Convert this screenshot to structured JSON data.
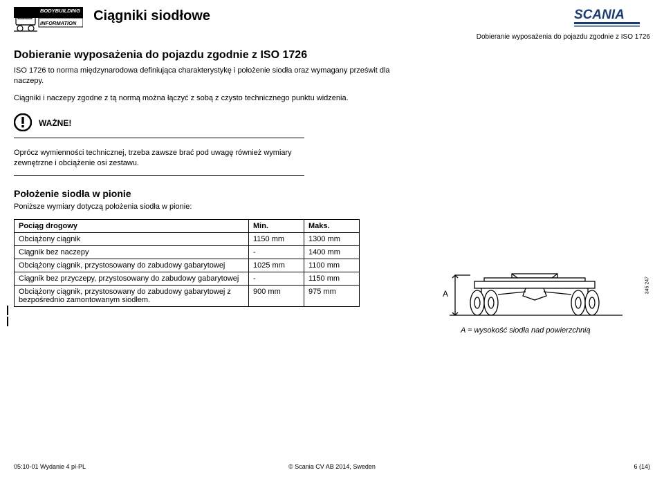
{
  "colors": {
    "brand_blue": "#1a3e72",
    "text": "#000000",
    "bg": "#ffffff",
    "line": "#000000"
  },
  "header": {
    "badge_line1": "BODYBUILDING",
    "badge_line2": "INFORMATION",
    "doc_title": "Ciągniki siodłowe",
    "brand": "SCANIA",
    "right_caption": "Dobieranie wyposażenia do pojazdu zgodnie z ISO 1726"
  },
  "section": {
    "h2": "Dobieranie wyposażenia do pojazdu zgodnie z ISO 1726",
    "p1": "ISO 1726 to norma międzynarodowa definiująca charakterystykę i położenie siodła oraz wymagany prześwit dla naczepy.",
    "p2": "Ciągniki i naczepy zgodne z tą normą można łączyć z sobą z czysto technicznego punktu widzenia.",
    "warn_label": "WAŻNE!",
    "warn_text": "Oprócz wymienności technicznej, trzeba zawsze brać pod uwagę również wymiary zewnętrzne i obciążenie osi zestawu."
  },
  "subsection": {
    "h3": "Położenie siodła w pionie",
    "intro": "Poniższe wymiary dotyczą położenia siodła w pionie:"
  },
  "table": {
    "head": [
      "Pociąg drogowy",
      "Min.",
      "Maks."
    ],
    "rows": [
      [
        "Obciążony ciągnik",
        "1150 mm",
        "1300 mm"
      ],
      [
        "Ciągnik bez naczepy",
        "-",
        "1400 mm"
      ],
      [
        "Obciążony ciągnik, przystosowany do zabudowy gabarytowej",
        "1025 mm",
        "1100 mm"
      ],
      [
        "Ciągnik bez przyczepy, przystosowany do zabudowy gabarytowej",
        "-",
        "1150 mm"
      ],
      [
        "Obciążony ciągnik, przystosowany do zabudowy gabarytowej z bezpośrednio zamontowanym siodłem.",
        "900 mm",
        "975 mm"
      ]
    ]
  },
  "diagram": {
    "label_a": "A",
    "side_code": "345 247",
    "caption_prefix": "A",
    "caption_rest": "= wysokość siodła nad powierzchnią"
  },
  "footer": {
    "left": "05:10-01 Wydanie 4 pl-PL",
    "center": "©  Scania CV AB 2014, Sweden",
    "right": "6 (14)"
  }
}
